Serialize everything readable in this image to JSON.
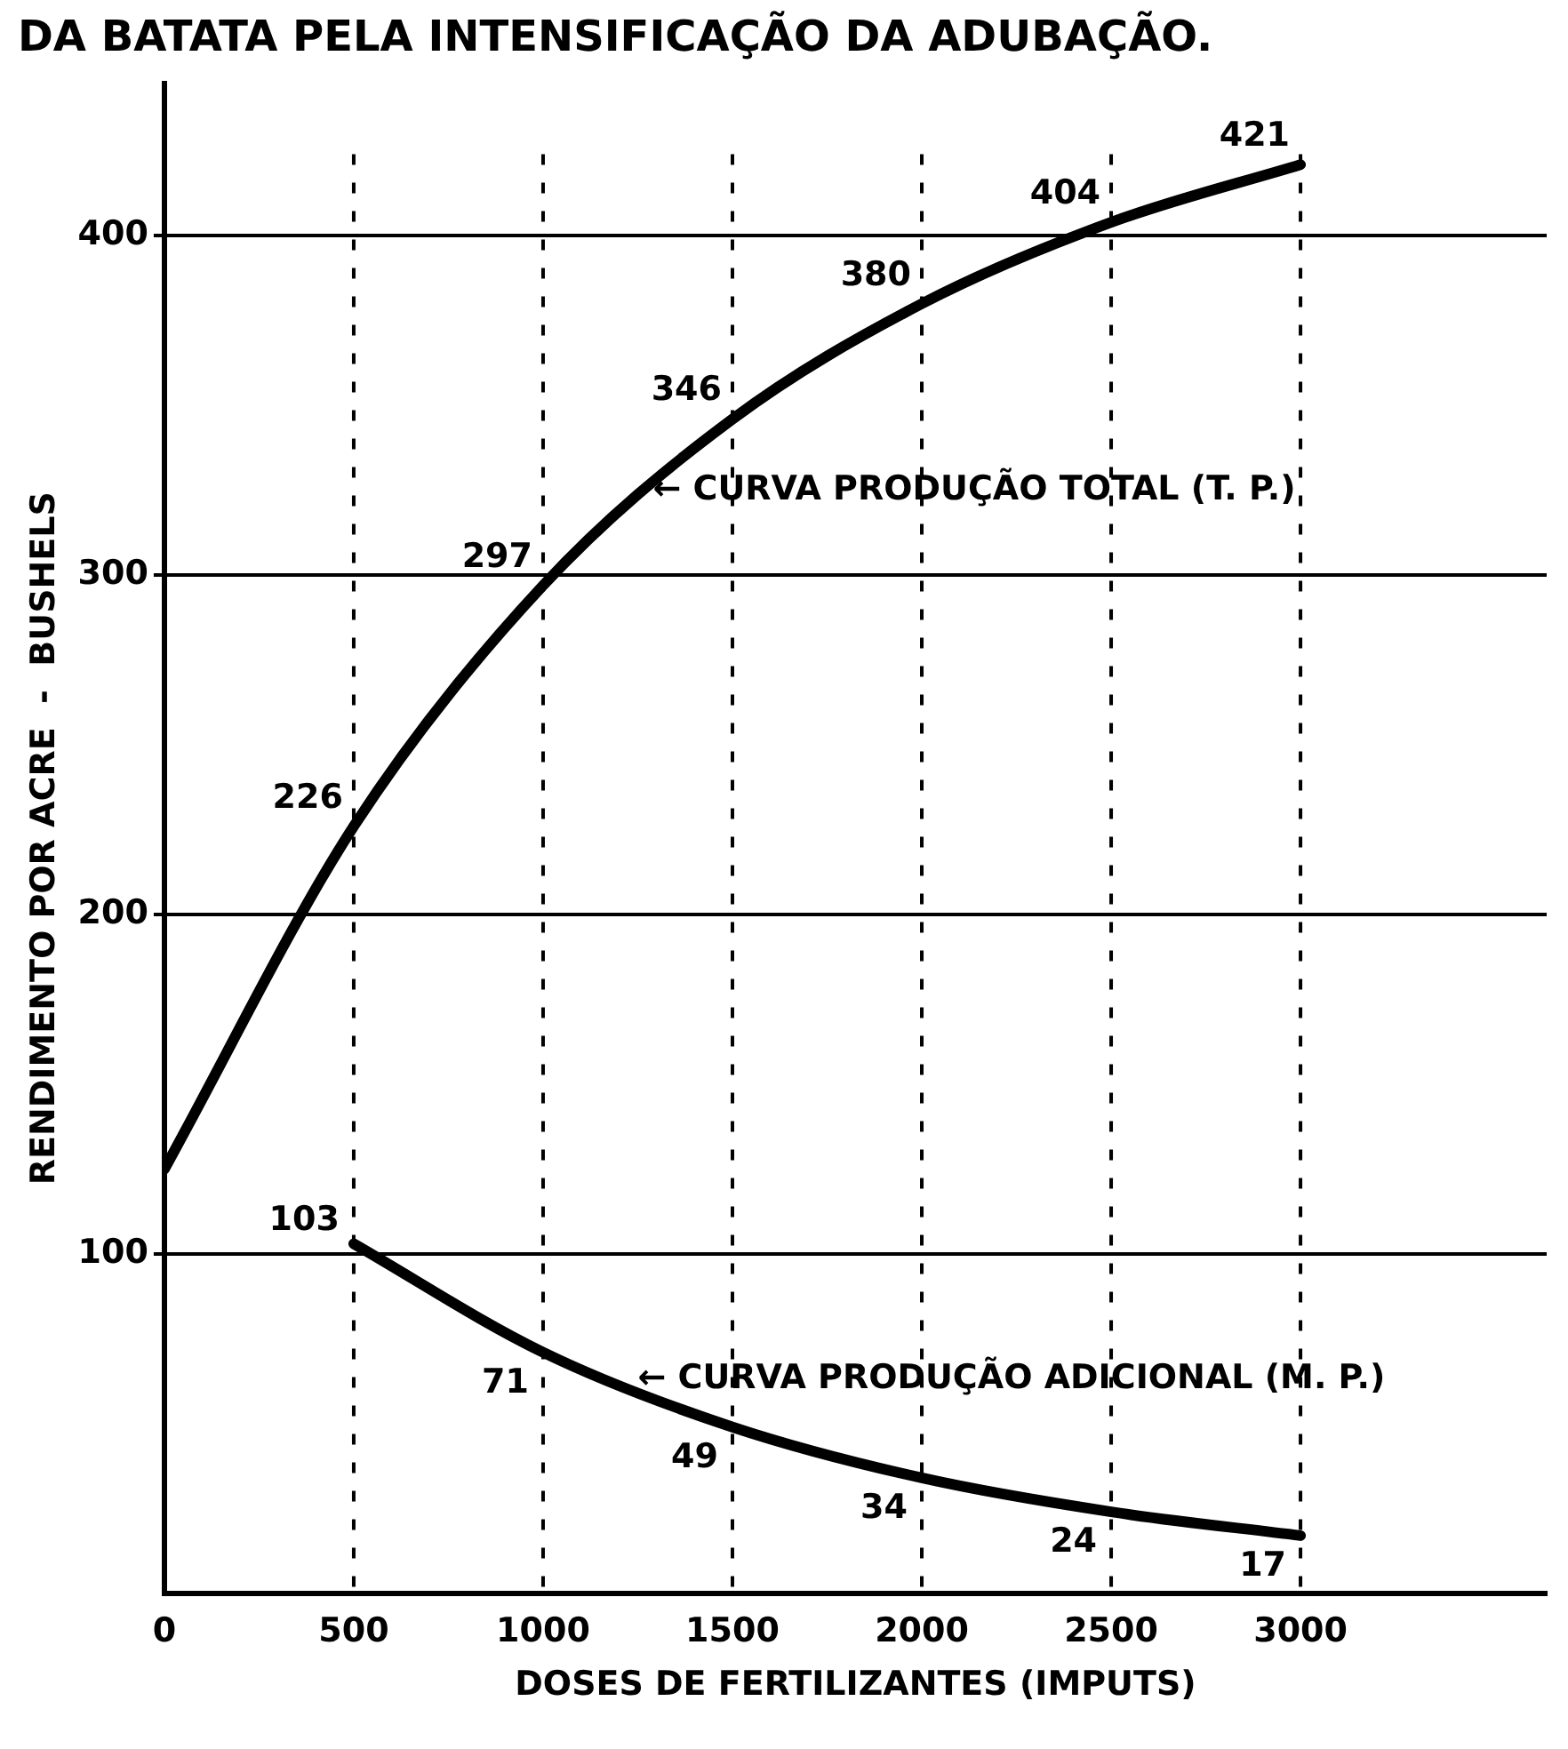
{
  "chart_data": {
    "type": "line",
    "title": "DA BATATA PELA INTENSIFICAÇÃO DA ADUBAÇÃO.",
    "xlabel": "DOSES DE FERTILIZANTES (IMPUTS)",
    "ylabel": "RENDIMENTO POR ACRE  -  BUSHELS",
    "x": [
      0,
      500,
      1000,
      1500,
      2000,
      2500,
      3000
    ],
    "series": [
      {
        "color": "#000000",
        "values": [
          125,
          226,
          297,
          346,
          380,
          404,
          421
        ],
        "value_labels": [
          null,
          "226",
          "297",
          "346",
          "380",
          "404",
          "421"
        ]
      },
      {
        "color": "#000000",
        "values": [
          null,
          103,
          71,
          49,
          34,
          24,
          17
        ],
        "value_labels": [
          null,
          "103",
          "71",
          "49",
          "34",
          "24",
          "17"
        ]
      }
    ],
    "xlim": [
      0,
      3650
    ],
    "xticks": [
      0,
      500,
      1000,
      1500,
      2000,
      2500,
      3000
    ],
    "ylim": [
      0,
      445
    ],
    "yticks": [
      100,
      200,
      300,
      400
    ],
    "grid": true,
    "legend": false,
    "marker": "none",
    "line_style": "solid",
    "annotations": [
      {
        "text": "← CURVA PRODUÇÃO TOTAL (T. P.)",
        "x": 1290,
        "y": 325
      },
      {
        "text": "← CURVA PRODUÇÃO ADICIONAL (M. P.)",
        "x": 1250,
        "y": 63
      }
    ]
  }
}
